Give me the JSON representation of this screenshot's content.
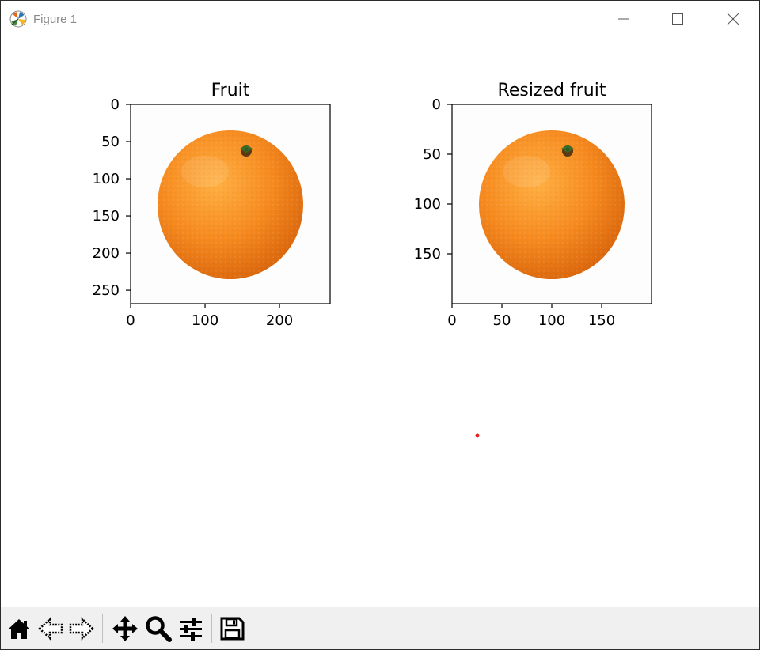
{
  "window": {
    "title": "Figure 1",
    "icon": "matplotlib-logo-icon",
    "controls": [
      "minimize-icon",
      "maximize-icon",
      "close-icon"
    ]
  },
  "figure": {
    "axes": [
      {
        "title": "Fruit",
        "image_width": 268,
        "image_height": 268,
        "xticks": [
          "0",
          "100",
          "200"
        ],
        "xtick_values": [
          0,
          100,
          200
        ],
        "yticks": [
          "0",
          "50",
          "100",
          "150",
          "200",
          "250"
        ],
        "ytick_values": [
          0,
          50,
          100,
          150,
          200,
          250
        ],
        "content": "orange"
      },
      {
        "title": "Resized fruit",
        "image_width": 200,
        "image_height": 200,
        "xticks": [
          "0",
          "50",
          "100",
          "150"
        ],
        "xtick_values": [
          0,
          50,
          100,
          150
        ],
        "yticks": [
          "0",
          "50",
          "100",
          "150"
        ],
        "ytick_values": [
          0,
          50,
          100,
          150
        ],
        "content": "orange"
      }
    ]
  },
  "toolbar": {
    "buttons": [
      {
        "name": "home-button",
        "icon": "home-icon"
      },
      {
        "name": "back-button",
        "icon": "back-arrow-icon"
      },
      {
        "name": "forward-button",
        "icon": "forward-arrow-icon"
      },
      {
        "name": "pan-button",
        "icon": "move-icon"
      },
      {
        "name": "zoom-button",
        "icon": "magnifier-icon"
      },
      {
        "name": "configure-subplots-button",
        "icon": "sliders-icon"
      },
      {
        "name": "save-button",
        "icon": "floppy-disk-icon"
      }
    ]
  },
  "colors": {
    "toolbar_bg": "#f0f0f0",
    "orange": "#f08a1c",
    "stem": "#3d6b2b",
    "cursor_dot": "#e02020"
  }
}
